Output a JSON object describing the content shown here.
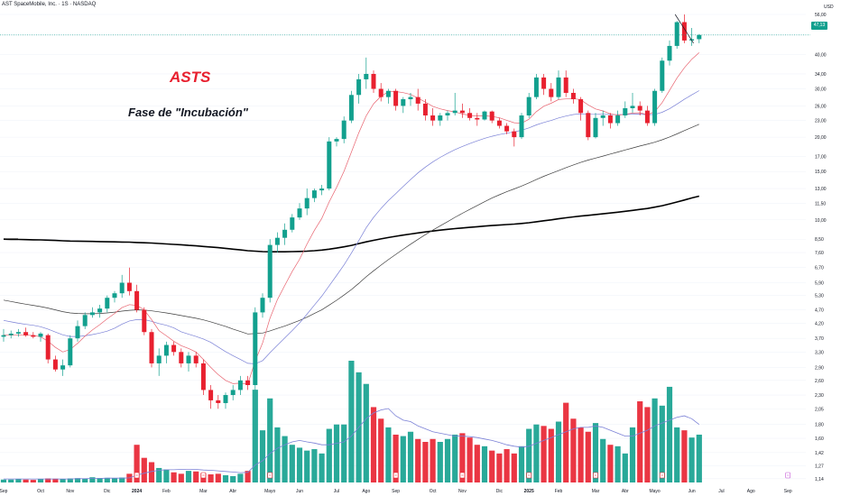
{
  "header": {
    "title": "AST SpaceMobile, Inc. · 1S · NASDAQ"
  },
  "annotations": {
    "ticker": "ASTS",
    "phase": "Fase de \"Incubación\""
  },
  "price_axis": {
    "currency": "USD",
    "last_price": "47,13"
  },
  "colors": {
    "up": "#12a08e",
    "down": "#e8202f",
    "ma_fast": "#e8636f",
    "ma_mid": "#7a80d6",
    "ma_slow": "#3c3c3c",
    "ma_long": "#000000",
    "volume_avg": "#7a80d6"
  },
  "chart_data": {
    "type": "candlestick",
    "scale": "log",
    "timeframe": "1S",
    "ylim": [
      1.13,
      56
    ],
    "y_ticks": [
      "56,00",
      "47,13",
      "40,00",
      "34,00",
      "30,00",
      "26,00",
      "23,00",
      "20,00",
      "17,00",
      "15,00",
      "13,00",
      "11,50",
      "10,00",
      "8,50",
      "7,60",
      "6,70",
      "5,90",
      "5,30",
      "4,70",
      "4,20",
      "3,70",
      "3,30",
      "2,90",
      "2,60",
      "2,30",
      "2,05",
      "1,80",
      "1,60",
      "1,42",
      "1,27",
      "1,14"
    ],
    "x_labels": [
      "Sep",
      "Oct",
      "Nov",
      "Dic",
      "2024",
      "Feb",
      "Mar",
      "Abr",
      "Mayo",
      "Jun",
      "Jul",
      "Ago",
      "Sep",
      "Oct",
      "Nov",
      "Dic",
      "2025",
      "Feb",
      "Mar",
      "Abr",
      "Mayo",
      "Jun",
      "Jul",
      "Ago",
      "Sep"
    ],
    "x_label_week_index": [
      0,
      5,
      9,
      14,
      18,
      22,
      27,
      31,
      36,
      40,
      45,
      49,
      53,
      58,
      62,
      67,
      71,
      75,
      80,
      84,
      88,
      93,
      97,
      101,
      106
    ],
    "candles": [
      [
        3.75,
        4.0,
        3.6,
        3.8
      ],
      [
        3.8,
        3.95,
        3.7,
        3.85
      ],
      [
        3.85,
        4.0,
        3.75,
        3.9
      ],
      [
        3.9,
        4.05,
        3.75,
        3.8
      ],
      [
        3.8,
        3.9,
        3.7,
        3.75
      ],
      [
        3.75,
        3.9,
        3.6,
        3.85
      ],
      [
        3.8,
        3.85,
        3.0,
        3.1
      ],
      [
        3.1,
        3.2,
        2.8,
        2.85
      ],
      [
        2.85,
        3.1,
        2.7,
        2.95
      ],
      [
        2.95,
        3.8,
        2.9,
        3.7
      ],
      [
        3.7,
        4.3,
        3.6,
        4.1
      ],
      [
        4.1,
        4.6,
        4.0,
        4.5
      ],
      [
        4.5,
        4.8,
        4.4,
        4.6
      ],
      [
        4.6,
        4.9,
        4.4,
        4.75
      ],
      [
        4.75,
        5.3,
        4.6,
        5.2
      ],
      [
        5.2,
        5.5,
        5.0,
        5.4
      ],
      [
        5.4,
        6.3,
        5.2,
        5.9
      ],
      [
        5.9,
        6.7,
        5.3,
        5.5
      ],
      [
        5.5,
        5.8,
        4.6,
        4.7
      ],
      [
        4.7,
        4.8,
        3.8,
        3.9
      ],
      [
        3.9,
        4.0,
        2.9,
        3.0
      ],
      [
        3.0,
        3.4,
        2.7,
        3.2
      ],
      [
        3.2,
        3.6,
        3.0,
        3.5
      ],
      [
        3.5,
        3.6,
        3.2,
        3.3
      ],
      [
        3.3,
        3.4,
        2.9,
        3.0
      ],
      [
        3.0,
        3.3,
        2.8,
        3.2
      ],
      [
        3.2,
        3.3,
        2.9,
        3.0
      ],
      [
        3.0,
        3.1,
        2.3,
        2.4
      ],
      [
        2.4,
        2.5,
        2.05,
        2.2
      ],
      [
        2.2,
        2.3,
        2.05,
        2.15
      ],
      [
        2.15,
        2.35,
        2.05,
        2.3
      ],
      [
        2.3,
        2.5,
        2.2,
        2.4
      ],
      [
        2.4,
        2.7,
        2.3,
        2.6
      ],
      [
        2.6,
        2.7,
        2.4,
        2.5
      ],
      [
        2.5,
        4.8,
        2.4,
        4.6
      ],
      [
        4.6,
        5.4,
        4.4,
        5.2
      ],
      [
        5.2,
        8.5,
        5.0,
        8.1
      ],
      [
        8.1,
        9.0,
        7.6,
        8.6
      ],
      [
        8.6,
        9.7,
        8.1,
        9.2
      ],
      [
        9.2,
        10.5,
        9.0,
        10.2
      ],
      [
        10.2,
        11.5,
        10.0,
        11.0
      ],
      [
        11.0,
        13.0,
        10.4,
        12.0
      ],
      [
        12.0,
        13.0,
        11.6,
        12.8
      ],
      [
        12.8,
        13.4,
        12.3,
        13.0
      ],
      [
        13.0,
        20.0,
        12.8,
        19.3
      ],
      [
        19.3,
        20.0,
        18.5,
        19.7
      ],
      [
        19.7,
        23.8,
        19.0,
        23.0
      ],
      [
        23.0,
        29.5,
        22.5,
        28.5
      ],
      [
        28.5,
        34.0,
        26.5,
        32.5
      ],
      [
        32.5,
        39.0,
        30.0,
        34.0
      ],
      [
        34.0,
        35.0,
        29.0,
        30.0
      ],
      [
        30.0,
        31.5,
        27.0,
        28.0
      ],
      [
        28.0,
        30.0,
        26.5,
        29.5
      ],
      [
        29.5,
        30.0,
        25.0,
        26.0
      ],
      [
        26.0,
        28.0,
        24.5,
        27.5
      ],
      [
        27.5,
        29.0,
        26.0,
        28.0
      ],
      [
        28.0,
        30.0,
        25.0,
        26.5
      ],
      [
        26.5,
        27.5,
        23.0,
        24.0
      ],
      [
        24.0,
        25.5,
        22.0,
        23.0
      ],
      [
        23.0,
        24.5,
        22.0,
        24.0
      ],
      [
        24.0,
        25.0,
        23.0,
        24.5
      ],
      [
        24.5,
        29.0,
        24.0,
        25.0
      ],
      [
        25.0,
        26.5,
        23.5,
        24.5
      ],
      [
        24.5,
        25.5,
        23.0,
        23.5
      ],
      [
        23.5,
        24.5,
        22.0,
        23.2
      ],
      [
        23.2,
        25.0,
        23.0,
        24.8
      ],
      [
        24.8,
        25.0,
        22.5,
        23.0
      ],
      [
        23.0,
        23.5,
        21.5,
        22.0
      ],
      [
        22.0,
        22.5,
        20.5,
        21.0
      ],
      [
        21.0,
        21.5,
        18.5,
        20.0
      ],
      [
        20.0,
        24.5,
        19.7,
        24.0
      ],
      [
        24.0,
        29.0,
        23.5,
        28.0
      ],
      [
        28.0,
        34.0,
        27.5,
        33.0
      ],
      [
        33.0,
        34.0,
        28.5,
        30.0
      ],
      [
        30.0,
        31.5,
        27.0,
        28.0
      ],
      [
        28.0,
        35.0,
        27.5,
        33.0
      ],
      [
        33.0,
        35.0,
        28.0,
        29.0
      ],
      [
        29.0,
        30.0,
        26.5,
        27.5
      ],
      [
        27.5,
        28.0,
        23.0,
        24.5
      ],
      [
        24.5,
        25.0,
        19.5,
        20.0
      ],
      [
        20.0,
        24.5,
        19.8,
        23.5
      ],
      [
        23.5,
        25.0,
        22.0,
        24.0
      ],
      [
        24.0,
        24.5,
        21.5,
        22.5
      ],
      [
        22.5,
        25.0,
        22.0,
        24.0
      ],
      [
        24.0,
        27.0,
        23.5,
        25.5
      ],
      [
        25.5,
        29.0,
        24.5,
        26.0
      ],
      [
        26.0,
        27.0,
        24.0,
        25.0
      ],
      [
        25.0,
        26.0,
        22.0,
        22.5
      ],
      [
        22.5,
        30.0,
        22.0,
        29.5
      ],
      [
        29.5,
        39.0,
        29.0,
        38.0
      ],
      [
        38.0,
        45.0,
        36.5,
        43.0
      ],
      [
        43.0,
        53.0,
        42.0,
        52.5
      ],
      [
        52.5,
        56.0,
        44.0,
        45.0
      ],
      [
        45.0,
        50.0,
        43.0,
        45.5
      ],
      [
        45.5,
        47.5,
        44.0,
        47.13
      ]
    ],
    "ma_fast": [
      3.81,
      3.8,
      3.8,
      3.8,
      3.79,
      3.75,
      3.61,
      3.43,
      3.3,
      3.37,
      3.55,
      3.77,
      3.97,
      4.15,
      4.36,
      4.56,
      4.79,
      4.91,
      4.88,
      4.7,
      4.33,
      3.95,
      3.78,
      3.61,
      3.48,
      3.4,
      3.3,
      3.1,
      2.9,
      2.73,
      2.6,
      2.53,
      2.54,
      2.52,
      3.06,
      3.56,
      4.38,
      5.12,
      5.77,
      6.48,
      7.18,
      8.16,
      9.16,
      10.12,
      11.62,
      13.13,
      15.02,
      17.63,
      20.74,
      23.92,
      26.46,
      28.2,
      29.26,
      29.32,
      29.07,
      28.62,
      27.75,
      26.84,
      25.9,
      25.37,
      25.0,
      24.73,
      24.3,
      24.0,
      23.9,
      23.93,
      23.81,
      23.53,
      23.05,
      22.58,
      22.48,
      23.25,
      24.78,
      25.93,
      26.58,
      27.43,
      27.56,
      27.67,
      27.35,
      26.22,
      25.34,
      24.93,
      24.31,
      24.07,
      24.22,
      24.48,
      24.55,
      24.14,
      24.78,
      26.72,
      29.62,
      32.82,
      35.78,
      38.44,
      40.62
    ],
    "ma_mid": [
      4.3,
      4.25,
      4.2,
      4.16,
      4.13,
      4.08,
      4.0,
      3.9,
      3.81,
      3.76,
      3.76,
      3.78,
      3.82,
      3.87,
      3.93,
      4.03,
      4.17,
      4.28,
      4.33,
      4.33,
      4.27,
      4.19,
      4.13,
      4.04,
      3.91,
      3.83,
      3.76,
      3.68,
      3.58,
      3.44,
      3.31,
      3.2,
      3.1,
      3.0,
      2.99,
      3.07,
      3.28,
      3.49,
      3.71,
      3.95,
      4.21,
      4.53,
      4.89,
      5.27,
      5.75,
      6.27,
      6.85,
      7.56,
      8.4,
      9.35,
      10.21,
      11.0,
      11.75,
      12.46,
      13.22,
      14.02,
      14.82,
      15.56,
      16.24,
      16.88,
      17.46,
      18.02,
      18.51,
      18.96,
      19.39,
      19.8,
      20.15,
      20.45,
      20.68,
      20.9,
      21.2,
      21.62,
      22.17,
      22.63,
      23.0,
      23.5,
      23.88,
      24.18,
      24.33,
      24.24,
      24.22,
      24.24,
      24.18,
      24.16,
      24.2,
      24.26,
      24.27,
      24.13,
      24.2,
      24.64,
      25.39,
      26.41,
      27.48,
      28.52,
      29.55
    ],
    "ma_slow": [
      5.1,
      5.04,
      4.98,
      4.93,
      4.88,
      4.83,
      4.77,
      4.7,
      4.63,
      4.58,
      4.56,
      4.55,
      4.55,
      4.56,
      4.58,
      4.61,
      4.65,
      4.68,
      4.7,
      4.69,
      4.66,
      4.62,
      4.58,
      4.53,
      4.48,
      4.43,
      4.38,
      4.32,
      4.25,
      4.17,
      4.09,
      4.0,
      3.92,
      3.84,
      3.85,
      3.87,
      3.94,
      4.02,
      4.1,
      4.2,
      4.3,
      4.42,
      4.56,
      4.7,
      4.89,
      5.09,
      5.32,
      5.57,
      5.87,
      6.2,
      6.52,
      6.84,
      7.16,
      7.48,
      7.81,
      8.15,
      8.49,
      8.83,
      9.17,
      9.51,
      9.85,
      10.21,
      10.56,
      10.91,
      11.27,
      11.64,
      12.0,
      12.34,
      12.66,
      12.96,
      13.28,
      13.63,
      14.02,
      14.41,
      14.76,
      15.11,
      15.49,
      15.85,
      16.19,
      16.5,
      16.78,
      17.07,
      17.36,
      17.66,
      17.97,
      18.27,
      18.58,
      18.86,
      19.18,
      19.57,
      20.03,
      20.56,
      21.14,
      21.71,
      22.29
    ],
    "ma_long": [
      8.5,
      8.49,
      8.48,
      8.47,
      8.46,
      8.45,
      8.43,
      8.41,
      8.39,
      8.37,
      8.36,
      8.35,
      8.34,
      8.33,
      8.32,
      8.31,
      8.3,
      8.29,
      8.27,
      8.25,
      8.23,
      8.2,
      8.17,
      8.14,
      8.11,
      8.07,
      8.04,
      8.0,
      7.96,
      7.92,
      7.87,
      7.82,
      7.77,
      7.72,
      7.69,
      7.66,
      7.65,
      7.65,
      7.65,
      7.66,
      7.67,
      7.69,
      7.72,
      7.76,
      7.82,
      7.89,
      7.97,
      8.07,
      8.19,
      8.31,
      8.42,
      8.52,
      8.62,
      8.71,
      8.8,
      8.88,
      8.96,
      9.03,
      9.1,
      9.17,
      9.23,
      9.29,
      9.34,
      9.39,
      9.44,
      9.49,
      9.53,
      9.57,
      9.61,
      9.65,
      9.7,
      9.76,
      9.84,
      9.92,
      10.0,
      10.09,
      10.17,
      10.25,
      10.32,
      10.38,
      10.45,
      10.52,
      10.59,
      10.66,
      10.74,
      10.82,
      10.91,
      11.0,
      11.12,
      11.26,
      11.43,
      11.61,
      11.81,
      12.01,
      12.2
    ],
    "volume": [
      10,
      10,
      12,
      10,
      9,
      11,
      14,
      13,
      12,
      14,
      15,
      14,
      18,
      15,
      16,
      14,
      17,
      30,
      130,
      85,
      70,
      50,
      45,
      35,
      30,
      40,
      38,
      32,
      28,
      30,
      25,
      22,
      30,
      40,
      320,
      180,
      290,
      190,
      160,
      130,
      120,
      110,
      115,
      100,
      185,
      200,
      200,
      420,
      380,
      340,
      260,
      220,
      190,
      165,
      160,
      175,
      150,
      140,
      150,
      140,
      150,
      165,
      170,
      155,
      130,
      125,
      110,
      100,
      115,
      100,
      125,
      185,
      200,
      195,
      185,
      210,
      275,
      220,
      190,
      175,
      205,
      150,
      130,
      125,
      100,
      190,
      280,
      260,
      290,
      265,
      330,
      190,
      180,
      155,
      165
    ],
    "volume_avg": [
      12,
      12,
      12,
      12,
      12,
      12,
      12,
      12,
      12,
      12,
      13,
      13,
      14,
      14,
      15,
      15,
      15,
      16,
      25,
      32,
      38,
      42,
      44,
      44,
      45,
      45,
      45,
      43,
      42,
      40,
      38,
      36,
      34,
      35,
      60,
      75,
      100,
      118,
      130,
      140,
      145,
      140,
      136,
      130,
      130,
      135,
      140,
      160,
      190,
      220,
      240,
      250,
      255,
      230,
      215,
      210,
      195,
      185,
      175,
      170,
      165,
      160,
      160,
      158,
      155,
      150,
      145,
      138,
      130,
      125,
      122,
      125,
      135,
      145,
      155,
      165,
      175,
      185,
      190,
      190,
      195,
      190,
      180,
      170,
      160,
      160,
      170,
      180,
      195,
      205,
      215,
      225,
      230,
      220,
      200
    ],
    "earnings_weeks": [
      18,
      27,
      36,
      53,
      62,
      71,
      80,
      89,
      106
    ]
  }
}
